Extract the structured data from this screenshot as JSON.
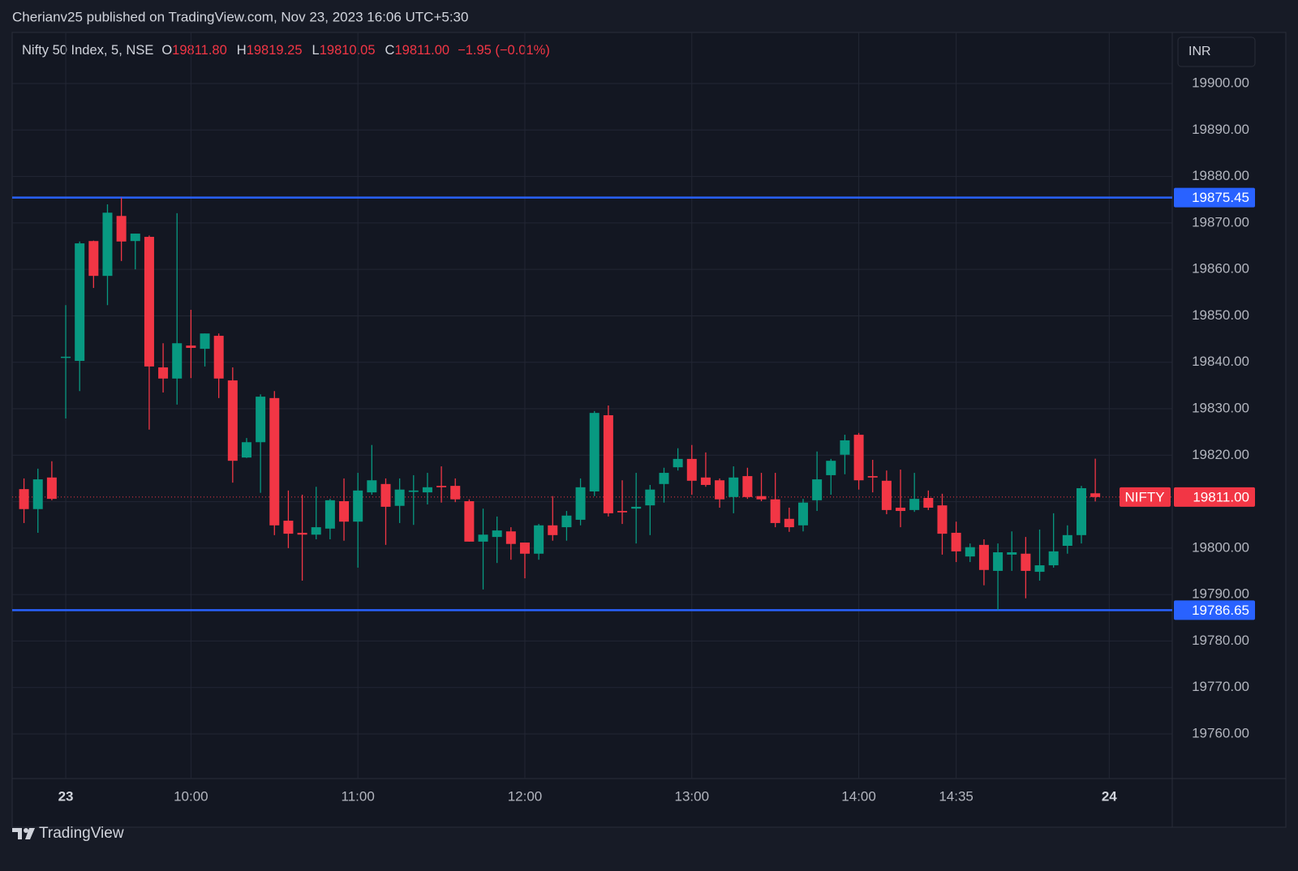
{
  "header": {
    "published": "Cherianv25 published on TradingView.com, Nov 23, 2023 16:06 UTC+5:30"
  },
  "footer": {
    "brand": "TradingView"
  },
  "chart_data": {
    "type": "candlestick",
    "title": "Nifty 50 Index, 5, NSE",
    "ohlc": [
      {
        "key": "O",
        "value": "19811.80"
      },
      {
        "key": "H",
        "value": "19819.25"
      },
      {
        "key": "L",
        "value": "19810.05"
      },
      {
        "key": "C",
        "value": "19811.00"
      }
    ],
    "change": "−1.95 (−0.01%)",
    "currency": "INR",
    "up_color": "#089981",
    "down_color": "#f23645",
    "line_color": "#2962ff",
    "grid": true,
    "categories": [
      null,
      null,
      null,
      "23",
      null,
      null,
      null,
      null,
      null,
      null,
      null,
      null,
      "10:00",
      null,
      null,
      null,
      null,
      null,
      null,
      null,
      null,
      null,
      null,
      null,
      "11:00",
      null,
      null,
      null,
      null,
      null,
      null,
      null,
      null,
      null,
      null,
      null,
      "12:00",
      null,
      null,
      null,
      null,
      null,
      null,
      null,
      null,
      null,
      null,
      null,
      "13:00",
      null,
      null,
      null,
      null,
      null,
      null,
      null,
      null,
      null,
      null,
      null,
      "14:00",
      null,
      null,
      null,
      null,
      null,
      null,
      "14:35",
      null,
      null,
      null,
      null,
      null,
      null,
      null,
      null,
      null,
      null,
      "24"
    ],
    "open": [
      19812.7,
      19808.4,
      19815.2,
      19841.0,
      19840.3,
      19866.1,
      19858.6,
      19871.5,
      19866.1,
      19867.0,
      19838.9,
      19836.5,
      19843.6,
      19842.9,
      19845.7,
      19836.1,
      19819.5,
      19822.8,
      19832.3,
      19805.9,
      19803.3,
      19802.9,
      19804.2,
      19810.1,
      19805.7,
      19812.0,
      19813.8,
      19809.1,
      19812.1,
      19812.0,
      19813.4,
      19813.4,
      19810.1,
      19801.4,
      19802.4,
      19803.6,
      19801.2,
      19798.8,
      19804.9,
      19804.5,
      19806.1,
      19812.2,
      19828.6,
      19808.0,
      19808.5,
      19809.2,
      19813.8,
      19817.4,
      19819.2,
      19815.2,
      19814.6,
      19811.0,
      19815.5,
      19811.2,
      19810.5,
      19806.3,
      19804.9,
      19810.3,
      19815.7,
      19820.1,
      19824.4,
      19815.5,
      19814.5,
      19808.7,
      19808.2,
      19810.8,
      19809.2,
      19803.3,
      19798.2,
      19800.7,
      19795.1,
      19798.6,
      19798.8,
      19794.9,
      19796.3,
      19800.5,
      19802.8,
      19811.8,
      null
    ],
    "high": [
      19815.0,
      19817.1,
      19818.7,
      19852.3,
      19866.0,
      19866.2,
      19874.0,
      19875.45,
      19867.7,
      19867.3,
      19844.1,
      19872.1,
      19851.3,
      19846.2,
      19846.2,
      19838.9,
      19823.7,
      19833.1,
      19833.8,
      19812.4,
      19811.5,
      19813.2,
      19810.6,
      19815.0,
      19816.2,
      19822.2,
      19815.0,
      19815.0,
      19815.7,
      19816.2,
      19817.6,
      19815.0,
      19810.5,
      19808.5,
      19806.8,
      19804.5,
      19801.2,
      19805.2,
      19811.2,
      19808.0,
      19815.0,
      19829.5,
      19830.7,
      19814.6,
      19816.2,
      19813.6,
      19817.3,
      19821.5,
      19822.2,
      19820.6,
      19815.0,
      19817.6,
      19817.3,
      19816.2,
      19816.2,
      19808.7,
      19810.6,
      19820.8,
      19819.2,
      19824.4,
      19824.8,
      19819.0,
      19816.7,
      19816.9,
      19816.2,
      19812.4,
      19811.7,
      19805.7,
      19801.0,
      19801.9,
      19801.0,
      19803.6,
      19802.4,
      19804.0,
      19807.5,
      19804.9,
      19813.4,
      19819.25,
      null
    ],
    "low": [
      19805.4,
      19803.3,
      19810.3,
      19827.9,
      19833.8,
      19856.0,
      19852.3,
      19861.8,
      19860.0,
      19825.5,
      19833.5,
      19830.9,
      19836.6,
      19839.1,
      19832.3,
      19814.1,
      19819.4,
      19811.9,
      19802.8,
      19800.0,
      19793.0,
      19801.9,
      19801.9,
      19801.6,
      19795.8,
      19811.5,
      19800.7,
      19805.4,
      19805.0,
      19809.4,
      19809.8,
      19809.9,
      19801.4,
      19791.1,
      19796.8,
      19797.5,
      19793.5,
      19797.5,
      19801.6,
      19801.6,
      19804.9,
      19811.2,
      19806.8,
      19805.2,
      19801.0,
      19802.8,
      19809.8,
      19816.7,
      19811.5,
      19813.2,
      19808.7,
      19807.5,
      19810.6,
      19810.1,
      19804.5,
      19803.5,
      19803.6,
      19808.0,
      19811.5,
      19815.9,
      19812.6,
      19812.0,
      19807.3,
      19804.5,
      19807.8,
      19808.2,
      19798.6,
      19797.0,
      19797.0,
      19792.0,
      19786.65,
      19795.1,
      19789.2,
      19793.0,
      19795.8,
      19798.8,
      19801.0,
      19810.05,
      null
    ],
    "close": [
      19808.4,
      19814.8,
      19810.6,
      19841.2,
      19865.6,
      19858.6,
      19872.2,
      19866.0,
      19867.7,
      19839.1,
      19836.5,
      19844.1,
      19843.1,
      19846.2,
      19836.5,
      19818.8,
      19822.8,
      19832.6,
      19804.9,
      19803.1,
      19802.9,
      19804.5,
      19810.3,
      19805.7,
      19812.4,
      19814.6,
      19808.9,
      19812.6,
      19812.4,
      19813.1,
      19813.1,
      19810.5,
      19801.4,
      19802.9,
      19803.8,
      19800.9,
      19798.8,
      19804.9,
      19802.8,
      19807.0,
      19813.1,
      19829.1,
      19807.5,
      19807.7,
      19808.9,
      19812.6,
      19816.2,
      19819.2,
      19814.5,
      19813.6,
      19810.5,
      19815.2,
      19811.0,
      19810.5,
      19805.4,
      19804.5,
      19809.8,
      19814.8,
      19818.8,
      19823.2,
      19814.6,
      19815.2,
      19808.2,
      19808.0,
      19810.6,
      19808.7,
      19803.1,
      19799.3,
      19800.2,
      19795.3,
      19799.1,
      19799.1,
      19795.1,
      19796.3,
      19799.3,
      19802.8,
      19812.9,
      19811.0,
      null
    ],
    "ylim": [
      19750.4,
      19911.0
    ],
    "yticks": [
      {
        "value": 19760,
        "label": "19760.00"
      },
      {
        "value": 19770,
        "label": "19770.00"
      },
      {
        "value": 19780,
        "label": "19780.00"
      },
      {
        "value": 19790,
        "label": "19790.00"
      },
      {
        "value": 19800,
        "label": "19800.00"
      },
      {
        "value": 19810,
        "label": "19810.00"
      },
      {
        "value": 19820,
        "label": "19820.00"
      },
      {
        "value": 19830,
        "label": "19830.00"
      },
      {
        "value": 19840,
        "label": "19840.00"
      },
      {
        "value": 19850,
        "label": "19850.00"
      },
      {
        "value": 19860,
        "label": "19860.00"
      },
      {
        "value": 19870,
        "label": "19870.00"
      },
      {
        "value": 19880,
        "label": "19880.00"
      },
      {
        "value": 19890,
        "label": "19890.00"
      },
      {
        "value": 19900,
        "label": "19900.00"
      }
    ],
    "hlines": [
      {
        "value": 19875.45,
        "label": "19875.45"
      },
      {
        "value": 19786.65,
        "label": "19786.65"
      }
    ],
    "last_price": {
      "name": "NIFTY",
      "value": 19811.0,
      "label": "19811.00"
    }
  }
}
